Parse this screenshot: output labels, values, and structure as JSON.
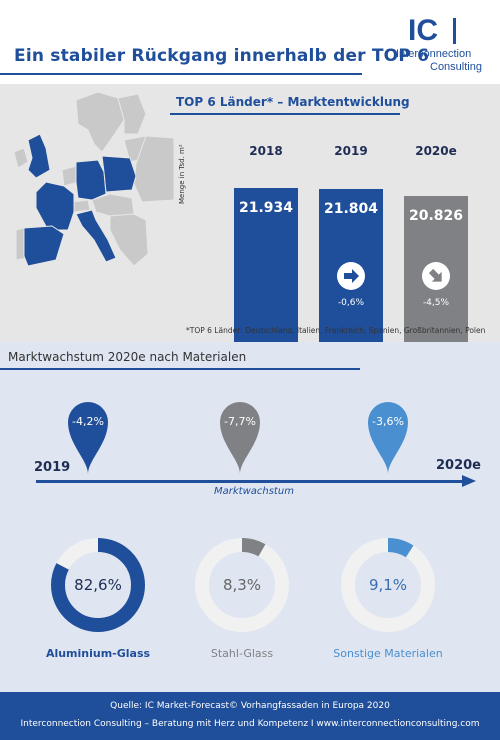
{
  "header": {
    "title": "Ein stabiler Rückgang innerhalb der TOP 6",
    "logo_ic": "IC",
    "logo_line1": "Interconnection",
    "logo_line2": "Consulting"
  },
  "market": {
    "title": "TOP 6 Länder* – Marktentwicklung",
    "ylabel": "Menge in Tsd. m²",
    "footnote": "*TOP 6 Länder: Deutschland, Italien, Frankreich, Spanien, Großbritannien, Polen",
    "colors": {
      "blue": "#1f4e9a",
      "grey": "#7f8185"
    }
  },
  "growth": {
    "title": "Marktwachstum 2020e nach Materialen",
    "start_label": "2019",
    "end_label": "2020e",
    "axis_label": "Marktwachstum",
    "pins": [
      {
        "value": "-4,2%",
        "color": "#1f4e9a"
      },
      {
        "value": "-7,7%",
        "color": "#7f8185"
      },
      {
        "value": "-3,6%",
        "color": "#4a8fd0"
      }
    ]
  },
  "chart_data": [
    {
      "type": "bar",
      "title": "TOP 6 Länder* – Marktentwicklung",
      "categories": [
        "2018",
        "2019",
        "2020e"
      ],
      "values": [
        21934,
        21804,
        20826
      ],
      "value_labels": [
        "21.934",
        "21.804",
        "20.826"
      ],
      "change_labels": [
        "",
        "-0,6%",
        "-4,5%"
      ],
      "bar_colors": [
        "#1f4e9a",
        "#1f4e9a",
        "#7f8185"
      ],
      "ylabel": "Menge in Tsd. m²"
    },
    {
      "type": "pie",
      "categories": [
        "Aluminium-Glass",
        "Stahl-Glass",
        "Sonstige Materialen"
      ],
      "values": [
        82.6,
        8.3,
        9.1
      ],
      "value_labels": [
        "82,6%",
        "8,3%",
        "9,1%"
      ],
      "colors": [
        "#1f4e9a",
        "#7f8185",
        "#4a8fd0"
      ]
    }
  ],
  "footer": {
    "line1": "Quelle: IC Market-Forecast© Vorhangfassaden in Europa 2020",
    "line2": "Interconnection Consulting – Beratung mit Herz und Kompetenz  I  www.interconnectionconsulting.com"
  }
}
